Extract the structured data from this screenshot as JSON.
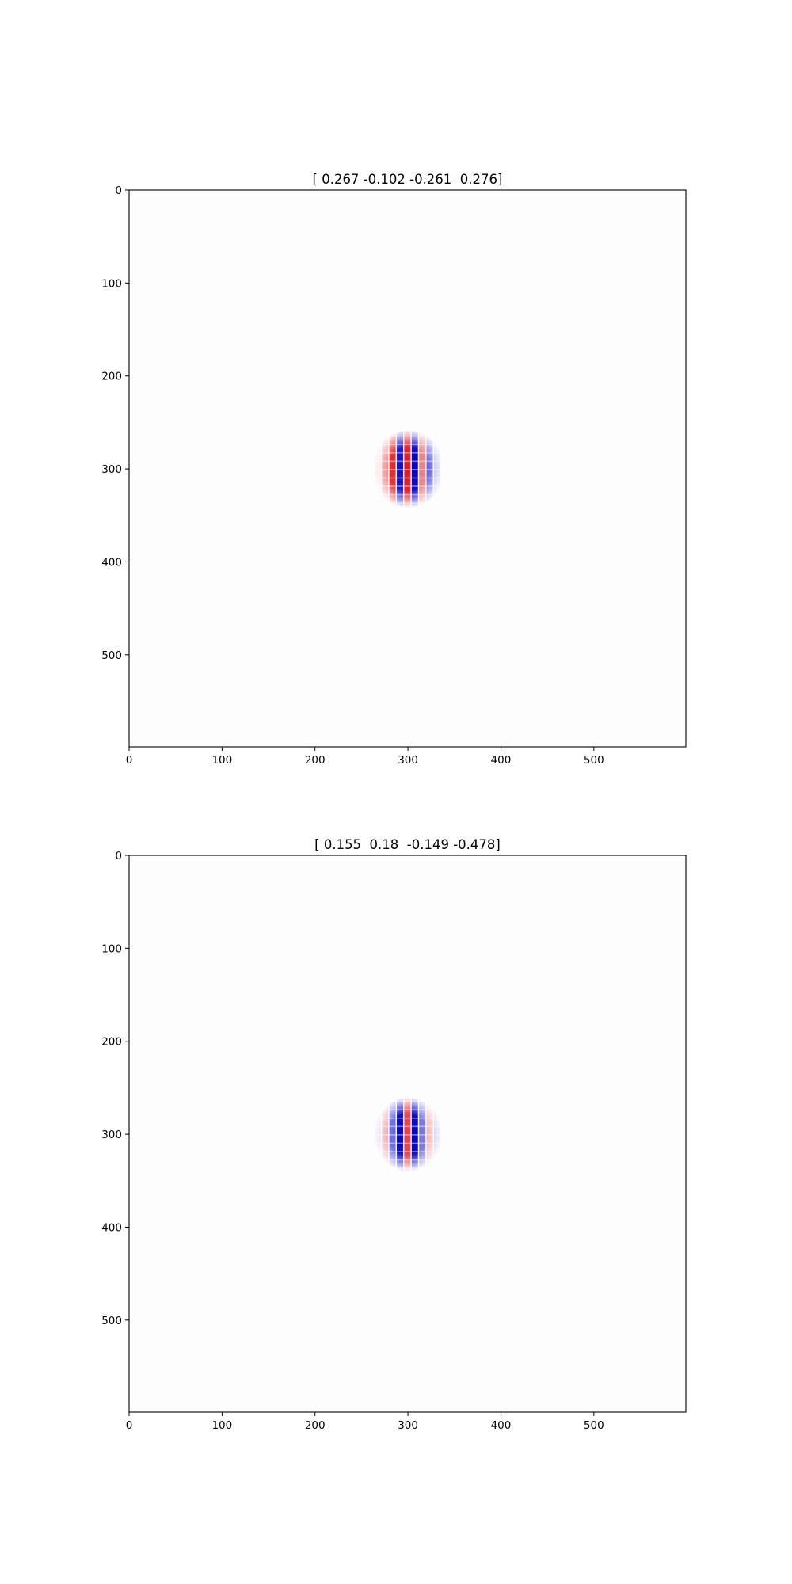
{
  "chart_data": [
    {
      "type": "heatmap",
      "title": "[ 0.267 -0.102 -0.261  0.276]",
      "xlabel": "",
      "ylabel": "",
      "xlim": [
        0,
        599
      ],
      "ylim": [
        599,
        0
      ],
      "xticks": [
        0,
        100,
        200,
        300,
        400,
        500
      ],
      "yticks": [
        0,
        100,
        200,
        300,
        400,
        500
      ],
      "xtick_labels": [
        "0",
        "100",
        "200",
        "300",
        "400",
        "500"
      ],
      "ytick_labels": [
        "0",
        "100",
        "200",
        "300",
        "400",
        "500"
      ],
      "grid": false,
      "colormap": "bwr",
      "colors": {
        "negative": "#0000cc",
        "zero": "#ffffff",
        "positive": "#dd0000"
      },
      "blob": {
        "center": [
          300,
          300
        ],
        "radius": 40,
        "stripes": [
          {
            "x": 268,
            "v": 0.15
          },
          {
            "x": 276,
            "v": 0.45
          },
          {
            "x": 284,
            "v": 0.85
          },
          {
            "x": 292,
            "v": -0.95
          },
          {
            "x": 300,
            "v": 0.9
          },
          {
            "x": 308,
            "v": -1.0
          },
          {
            "x": 316,
            "v": 0.5
          },
          {
            "x": 324,
            "v": -0.65
          },
          {
            "x": 332,
            "v": -0.3
          }
        ]
      }
    },
    {
      "type": "heatmap",
      "title": "[ 0.155  0.18  -0.149 -0.478]",
      "xlabel": "",
      "ylabel": "",
      "xlim": [
        0,
        599
      ],
      "ylim": [
        599,
        0
      ],
      "xticks": [
        0,
        100,
        200,
        300,
        400,
        500
      ],
      "yticks": [
        0,
        100,
        200,
        300,
        400,
        500
      ],
      "xtick_labels": [
        "0",
        "100",
        "200",
        "300",
        "400",
        "500"
      ],
      "ytick_labels": [
        "0",
        "100",
        "200",
        "300",
        "400",
        "500"
      ],
      "grid": false,
      "colormap": "bwr",
      "colors": {
        "negative": "#0000cc",
        "zero": "#ffffff",
        "positive": "#dd0000"
      },
      "blob": {
        "center": [
          300,
          300
        ],
        "radius": 38,
        "stripes": [
          {
            "x": 268,
            "v": -0.2
          },
          {
            "x": 276,
            "v": 0.35
          },
          {
            "x": 284,
            "v": -0.6
          },
          {
            "x": 292,
            "v": -1.0
          },
          {
            "x": 300,
            "v": 0.75
          },
          {
            "x": 308,
            "v": -1.0
          },
          {
            "x": 316,
            "v": -0.55
          },
          {
            "x": 324,
            "v": 0.3
          },
          {
            "x": 332,
            "v": -0.25
          }
        ]
      }
    }
  ]
}
